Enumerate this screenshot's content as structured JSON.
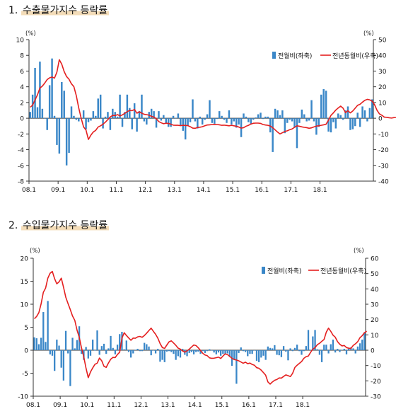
{
  "charts": [
    {
      "title_num": "1.",
      "title": "수출물가지수 등락률",
      "left_unit": "(%)",
      "right_unit": "(%)",
      "x_ticks": [
        "08.1",
        "09.1",
        "10.1",
        "11.1",
        "12.1",
        "13.1",
        "14.1",
        "15.1",
        "16.1",
        "17.1",
        "18.1"
      ],
      "legend_bar": "전월비(좌축)",
      "legend_line": "전년동월비(우축)"
    },
    {
      "title_num": "2.",
      "title": "수입물가지수 등락률",
      "left_unit": "(%)",
      "right_unit": "(%)",
      "x_ticks": [
        "08.1",
        "09.1",
        "10.1",
        "11.1",
        "12.1",
        "13.1",
        "14.1",
        "15.1",
        "16.1",
        "17.1",
        "18.1"
      ],
      "legend_bar": "전월비(좌축)",
      "legend_line": "전년동월비(우축)"
    }
  ],
  "colors": {
    "bar": "#3a87c8",
    "line": "#e41f1f",
    "axis": "#333333"
  },
  "chart_data": [
    {
      "type": "bar+line",
      "title": "수출물가지수 등락률",
      "x_start": "2008.1",
      "x_ticks": [
        "08.1",
        "09.1",
        "10.1",
        "11.1",
        "12.1",
        "13.1",
        "14.1",
        "15.1",
        "16.1",
        "17.1",
        "18.1"
      ],
      "ylim_left": [
        -8,
        10
      ],
      "left_ticks": [
        10,
        8,
        6,
        4,
        2,
        0,
        -2,
        -4,
        -6,
        -8
      ],
      "ylim_right": [
        -40,
        50
      ],
      "right_ticks": [
        50,
        40,
        30,
        20,
        10,
        0,
        -10,
        -20,
        -30,
        -40
      ],
      "series": [
        {
          "name": "전월비(좌축)",
          "axis": "left",
          "type": "bar",
          "values": [
            0.8,
            3.0,
            6.4,
            1.4,
            7.2,
            1.2,
            0.0,
            -1.5,
            4.2,
            7.6,
            0.3,
            -3.4,
            -4.5,
            4.6,
            3.5,
            -6.0,
            -4.4,
            1.5,
            0.3,
            -0.2,
            -0.4,
            0.0,
            1.0,
            -1.4,
            -0.5,
            -0.3,
            0.9,
            0.3,
            2.5,
            3.0,
            -1.3,
            0.2,
            0.8,
            -1.5,
            1.2,
            0.8,
            0.2,
            3.0,
            -1.1,
            0.8,
            3.0,
            1.3,
            -1.4,
            1.9,
            -1.7,
            0.9,
            3.0,
            -0.4,
            -0.8,
            0.8,
            1.2,
            0.9,
            -1.2,
            0.9,
            -0.3,
            0.4,
            -0.7,
            -1.1,
            -1.1,
            0.3,
            0.0,
            0.6,
            -0.9,
            -1.6,
            -2.7,
            -1.0,
            -0.5,
            2.4,
            -0.4,
            -1.3,
            0.2,
            -0.8,
            -0.2,
            0.5,
            2.3,
            -0.6,
            -0.7,
            -0.1,
            0.9,
            0.3,
            -0.2,
            -0.6,
            1.0,
            -0.8,
            -0.4,
            -1.2,
            -0.8,
            -2.4,
            0.6,
            0.2,
            -0.5,
            -0.8,
            -0.2,
            0.1,
            0.5,
            0.7,
            -0.1,
            0.2,
            0.2,
            -1.8,
            -4.3,
            1.2,
            1.0,
            0.4,
            1.0,
            -1.9,
            -0.6,
            -0.2,
            -0.4,
            -1.2,
            -3.8,
            -0.6,
            1.1,
            0.5,
            -0.4,
            -0.3,
            2.3,
            -0.4,
            -2.1,
            -1.1,
            3.0,
            3.7,
            3.5,
            -1.7,
            -1.8,
            -0.5,
            -1.3,
            0.6,
            0.4,
            -0.2,
            1.0,
            1.5,
            -1.5,
            -1.4,
            -1.0,
            0.7,
            -1.1,
            1.5,
            1.0,
            -0.4,
            1.3,
            2.4
          ]
        },
        {
          "name": "전년동월비(우축)",
          "axis": "right",
          "type": "line",
          "values": [
            7.0,
            8.3,
            11.6,
            14.9,
            19.2,
            20.4,
            22.4,
            24.6,
            25.7,
            26.2,
            25.5,
            29.3,
            37.2,
            34.4,
            29.7,
            26.5,
            24.8,
            21.9,
            20.1,
            14.4,
            6.6,
            0.1,
            -5.5,
            -7.5,
            -13.5,
            -10.8,
            -8.8,
            -7.7,
            -5.6,
            -4.8,
            -3.8,
            -2.5,
            -0.9,
            0.8,
            1.8,
            1.7,
            2.3,
            1.5,
            2.1,
            3.1,
            4.2,
            5.0,
            4.8,
            5.6,
            3.2,
            4.1,
            3.2,
            2.5,
            2.3,
            1.9,
            1.2,
            0.7,
            -0.3,
            -2.1,
            -2.9,
            -3.5,
            -3.2,
            -3.3,
            -3.8,
            -4.4,
            -4.5,
            -4.5,
            -4.7,
            -4.5,
            -4.6,
            -4.7,
            -5.4,
            -6.3,
            -6.4,
            -5.9,
            -5.7,
            -5.4,
            -4.8,
            -4.3,
            -4.2,
            -4.0,
            -3.9,
            -4.0,
            -4.2,
            -4.5,
            -4.4,
            -4.6,
            -4.8,
            -4.5,
            -4.8,
            -5.1,
            -5.6,
            -6.3,
            -6.0,
            -5.1,
            -4.5,
            -3.7,
            -3.2,
            -3.1,
            -3.1,
            -3.3,
            -4.0,
            -4.3,
            -4.5,
            -5.0,
            -6.0,
            -7.4,
            -8.8,
            -10.0,
            -9.2,
            -8.4,
            -8.0,
            -7.3,
            -6.8,
            -5.8,
            -4.8,
            -5.1,
            -5.5,
            -5.8,
            -6.0,
            -6.4,
            -6.1,
            -5.5,
            -5.0,
            -4.8,
            -4.5,
            -4.2,
            -3.8,
            -1.2,
            1.8,
            3.4,
            5.2,
            6.5,
            7.7,
            6.4,
            3.6,
            4.8,
            3.4,
            4.6,
            6.4,
            8.2,
            8.9,
            10.2,
            11.4,
            12.0,
            11.7,
            10.8,
            8.6,
            5.1,
            2.8,
            1.9,
            0.7,
            0.6,
            0.3,
            0.1,
            0.4,
            0.5,
            2.0,
            3.4,
            4.4
          ]
        }
      ]
    },
    {
      "type": "bar+line",
      "title": "수입물가지수 등락률",
      "x_start": "2008.1",
      "x_ticks": [
        "08.1",
        "09.1",
        "10.1",
        "11.1",
        "12.1",
        "13.1",
        "14.1",
        "15.1",
        "16.1",
        "17.1",
        "18.1"
      ],
      "ylim_left": [
        -10,
        20
      ],
      "left_ticks": [
        20,
        15,
        10,
        5,
        0,
        -5,
        -10
      ],
      "ylim_right": [
        -30,
        60
      ],
      "right_ticks": [
        60,
        50,
        40,
        30,
        20,
        10,
        0,
        -10,
        -20,
        -30
      ],
      "series": [
        {
          "name": "전월비(좌축)",
          "axis": "left",
          "type": "bar",
          "values": [
            2.8,
            2.6,
            1.3,
            2.7,
            8.3,
            1.8,
            10.7,
            -0.9,
            -1.2,
            -4.5,
            2.3,
            1.0,
            -3.8,
            -6.6,
            4.2,
            -0.7,
            -7.8,
            2.7,
            0.4,
            2.2,
            5.2,
            -0.8,
            -2.1,
            0.7,
            -1.8,
            -1.2,
            2.3,
            -0.1,
            4.3,
            -1.0,
            0.9,
            1.4,
            -0.8,
            0.4,
            3.1,
            0.5,
            -0.9,
            1.2,
            3.5,
            4.0,
            0.2,
            2.1,
            -0.4,
            -1.6,
            -0.7,
            0.1,
            0.3,
            -0.2,
            -0.2,
            1.6,
            1.3,
            0.8,
            -1.1,
            -0.1,
            -0.7,
            0.3,
            -2.5,
            -2.1,
            -2.6,
            -0.3,
            -0.2,
            -0.4,
            -0.8,
            -2.1,
            -1.3,
            -1.6,
            0.3,
            -1.0,
            -1.3,
            -0.6,
            -0.4,
            -0.9,
            -0.4,
            -0.3,
            -0.8,
            -0.2,
            -0.6,
            -0.2,
            0.2,
            -0.1,
            -0.5,
            -0.9,
            -0.5,
            -1.2,
            -0.8,
            -0.8,
            -0.7,
            -1.5,
            -3.4,
            -2.1,
            -7.3,
            -0.6,
            0.6,
            -0.2,
            -0.4,
            -1.3,
            -0.8,
            -0.8,
            -0.1,
            -2.3,
            -2.6,
            -1.6,
            -1.2,
            -2.1,
            0.8,
            0.5,
            0.4,
            1.1,
            -1.0,
            -1.1,
            -1.5,
            0.9,
            -0.3,
            -2.2,
            0.4,
            -0.2,
            0.5,
            1.2,
            -0.2,
            -1.0,
            -0.2,
            0.9,
            4.4,
            0.1,
            3.0,
            4.4,
            0.2,
            -1.0,
            -2.6,
            1.2,
            1.2,
            -0.7,
            1.3,
            2.3,
            -0.5,
            0.3,
            -0.4,
            0.1,
            0.3,
            -0.9,
            0.3,
            0.6,
            0.4,
            -0.7,
            0.8,
            1.5,
            2.3,
            3.9
          ]
        },
        {
          "name": "전년동월비(우축)",
          "axis": "right",
          "type": "line",
          "values": [
            20.5,
            22.0,
            24.5,
            30.2,
            37.8,
            40.5,
            47.0,
            50.2,
            51.4,
            46.7,
            43.3,
            44.6,
            47.0,
            41.0,
            34.5,
            30.4,
            26.5,
            22.3,
            19.5,
            13.1,
            8.4,
            1.5,
            -4.3,
            -11.7,
            -17.9,
            -14.2,
            -11.5,
            -9.2,
            -8.4,
            -5.1,
            -6.9,
            -10.5,
            -11.2,
            -8.3,
            -5.9,
            -4.7,
            -4.8,
            -2.8,
            -1.3,
            7.8,
            11.4,
            9.6,
            8.0,
            6.5,
            7.9,
            7.8,
            8.7,
            9.0,
            8.4,
            9.6,
            11.1,
            12.8,
            14.4,
            12.3,
            10.4,
            7.8,
            4.3,
            1.7,
            1.2,
            3.4,
            5.5,
            6.1,
            4.7,
            3.2,
            1.4,
            0.7,
            -0.5,
            -1.3,
            -0.4,
            0.7,
            2.1,
            3.4,
            3.0,
            1.6,
            -0.2,
            -2.0,
            -3.1,
            -3.6,
            -5.0,
            -5.3,
            -5.2,
            -4.9,
            -4.5,
            -5.4,
            -3.8,
            -2.4,
            -2.9,
            -4.0,
            -5.3,
            -6.1,
            -6.4,
            -6.9,
            -7.7,
            -8.5,
            -7.8,
            -8.8,
            -8.4,
            -9.3,
            -9.8,
            -11.4,
            -11.8,
            -13.0,
            -14.6,
            -16.3,
            -20.7,
            -22.1,
            -20.7,
            -19.6,
            -19.1,
            -18.1,
            -18.2,
            -17.1,
            -16.1,
            -16.6,
            -17.2,
            -15.1,
            -11.3,
            -9.8,
            -8.6,
            -7.4,
            -5.3,
            -4.2,
            -3.8,
            -1.4,
            0.7,
            1.7,
            3.6,
            4.5,
            5.8,
            7.0,
            11.8,
            14.4,
            12.3,
            9.8,
            8.5,
            5.6,
            3.9,
            2.8,
            3.1,
            1.7,
            1.3,
            1.2,
            3.1,
            4.2,
            5.6,
            8.2,
            9.5,
            11.4,
            12.4
          ]
        }
      ]
    }
  ]
}
